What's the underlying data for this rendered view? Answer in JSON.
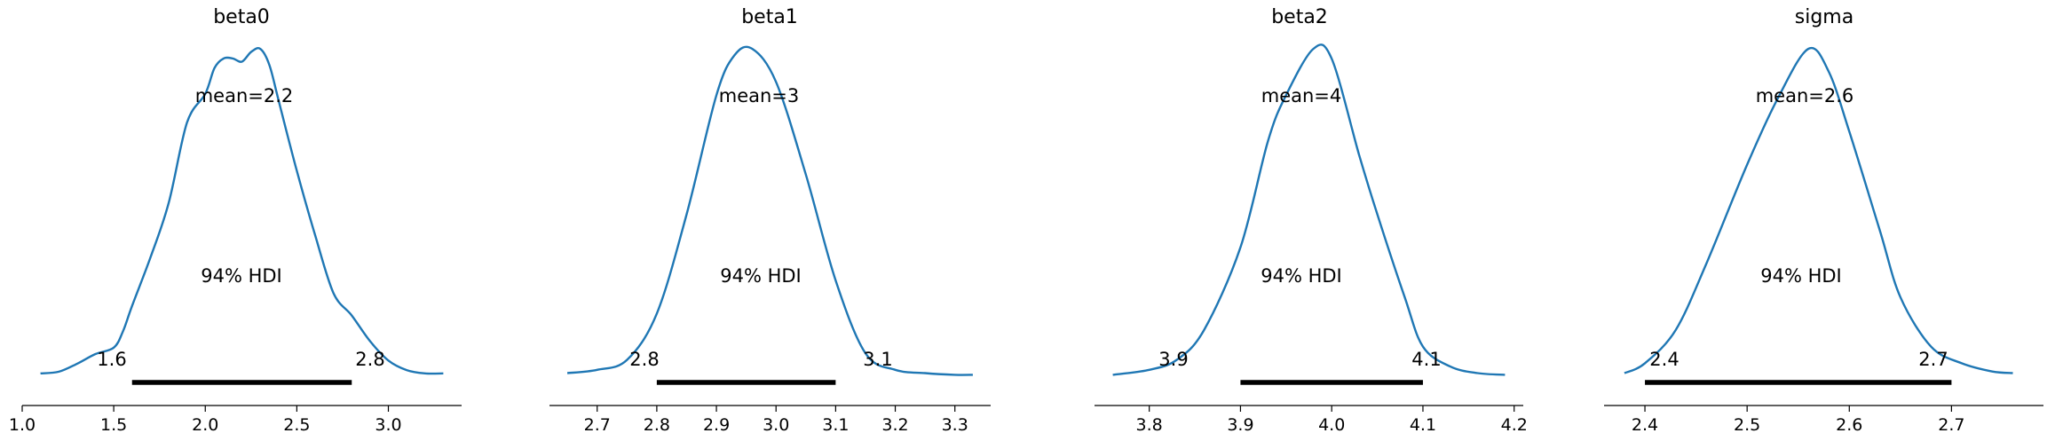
{
  "chart_data": [
    {
      "type": "line",
      "title": "beta0",
      "mean_label": "mean=2.2",
      "hdi_label": "94% HDI",
      "hdi": [
        1.6,
        2.8
      ],
      "hdi_tick_labels": [
        "1.6",
        "2.8"
      ],
      "xlim": [
        1.0,
        3.4
      ],
      "xticks": [
        1.0,
        1.5,
        2.0,
        2.5,
        3.0
      ],
      "xtick_labels": [
        "1.0",
        "1.5",
        "2.0",
        "2.5",
        "3.0"
      ],
      "density": {
        "x": [
          1.1,
          1.2,
          1.3,
          1.4,
          1.5,
          1.55,
          1.6,
          1.7,
          1.8,
          1.9,
          2.0,
          2.05,
          2.1,
          2.15,
          2.2,
          2.25,
          2.3,
          2.35,
          2.4,
          2.5,
          2.6,
          2.7,
          2.8,
          2.9,
          3.0,
          3.1,
          3.2,
          3.3
        ],
        "y": [
          0.02,
          0.025,
          0.05,
          0.08,
          0.1,
          0.15,
          0.23,
          0.38,
          0.55,
          0.8,
          0.89,
          0.97,
          1.0,
          1.0,
          0.99,
          1.02,
          1.03,
          0.98,
          0.87,
          0.65,
          0.45,
          0.27,
          0.2,
          0.12,
          0.06,
          0.03,
          0.02,
          0.02
        ]
      }
    },
    {
      "type": "line",
      "title": "beta1",
      "mean_label": "mean=3",
      "hdi_label": "94% HDI",
      "hdi": [
        2.8,
        3.1
      ],
      "hdi_tick_labels": [
        "2.8",
        "3.1"
      ],
      "xlim": [
        2.62,
        3.36
      ],
      "xticks": [
        2.7,
        2.8,
        2.9,
        3.0,
        3.1,
        3.2,
        3.3
      ],
      "xtick_labels": [
        "2.7",
        "2.8",
        "2.9",
        "3.0",
        "3.1",
        "3.2",
        "3.3"
      ],
      "density": {
        "x": [
          2.65,
          2.7,
          2.75,
          2.8,
          2.85,
          2.9,
          2.93,
          2.96,
          3.0,
          3.05,
          3.1,
          3.15,
          3.2,
          3.25,
          3.3,
          3.33
        ],
        "y": [
          0.02,
          0.03,
          0.06,
          0.2,
          0.5,
          0.86,
          0.98,
          1.0,
          0.9,
          0.62,
          0.3,
          0.08,
          0.03,
          0.02,
          0.015,
          0.015
        ]
      }
    },
    {
      "type": "line",
      "title": "beta2",
      "mean_label": "mean=4",
      "hdi_label": "94% HDI",
      "hdi": [
        3.9,
        4.1
      ],
      "hdi_tick_labels": [
        "3.9",
        "4.1"
      ],
      "xlim": [
        3.74,
        4.21
      ],
      "xticks": [
        3.8,
        3.9,
        4.0,
        4.1,
        4.2
      ],
      "xtick_labels": [
        "3.8",
        "3.9",
        "4.0",
        "4.1",
        "4.2"
      ],
      "density": {
        "x": [
          3.76,
          3.8,
          3.83,
          3.86,
          3.9,
          3.93,
          3.95,
          3.98,
          4.0,
          4.03,
          4.05,
          4.08,
          4.1,
          4.13,
          4.16,
          4.19
        ],
        "y": [
          0.015,
          0.03,
          0.06,
          0.15,
          0.4,
          0.72,
          0.86,
          1.0,
          0.97,
          0.68,
          0.5,
          0.25,
          0.1,
          0.04,
          0.02,
          0.015
        ]
      }
    },
    {
      "type": "line",
      "title": "sigma",
      "mean_label": "mean=2.6",
      "hdi_label": "94% HDI",
      "hdi": [
        2.4,
        2.7
      ],
      "hdi_tick_labels": [
        "2.4",
        "2.7"
      ],
      "xlim": [
        2.36,
        2.79
      ],
      "xticks": [
        2.4,
        2.5,
        2.6,
        2.7
      ],
      "xtick_labels": [
        "2.4",
        "2.5",
        "2.6",
        "2.7"
      ],
      "density": {
        "x": [
          2.38,
          2.4,
          2.43,
          2.46,
          2.5,
          2.53,
          2.56,
          2.58,
          2.6,
          2.63,
          2.65,
          2.68,
          2.71,
          2.74,
          2.76
        ],
        "y": [
          0.02,
          0.05,
          0.15,
          0.35,
          0.65,
          0.85,
          1.0,
          0.93,
          0.75,
          0.45,
          0.25,
          0.1,
          0.05,
          0.025,
          0.02
        ]
      }
    }
  ]
}
